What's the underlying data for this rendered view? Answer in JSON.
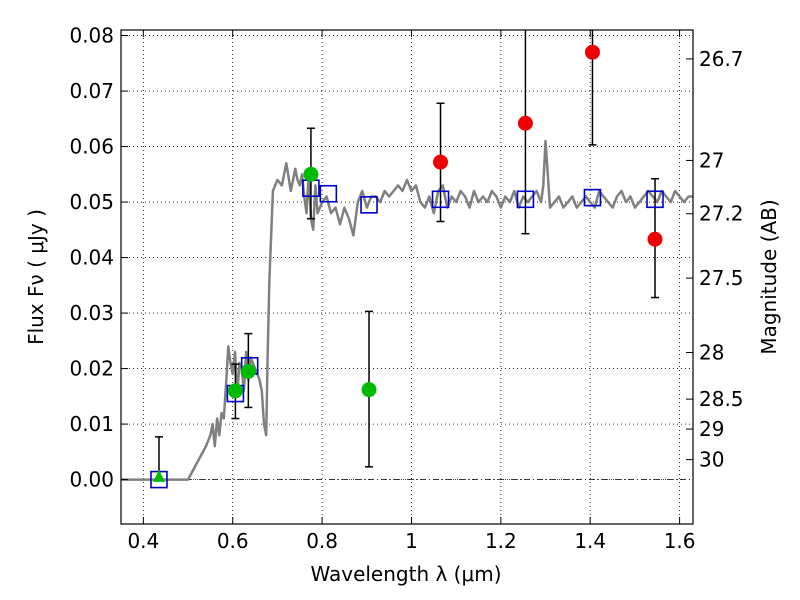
{
  "chart_data": {
    "type": "scatter",
    "xlabel": "Wavelength  λ (μm)",
    "ylabel": "Flux  Fν  ( μJy )",
    "y2label": "Magnitude (AB)",
    "xlim": [
      0.35,
      1.63
    ],
    "ylim": [
      -0.008,
      0.081
    ],
    "xticks": [
      0.4,
      0.6,
      0.8,
      1.0,
      1.2,
      1.4,
      1.6
    ],
    "xtick_labels": [
      "0.4",
      "0.6",
      "0.8",
      "1",
      "1.2",
      "1.4",
      "1.6"
    ],
    "yticks": [
      0.0,
      0.01,
      0.02,
      0.03,
      0.04,
      0.05,
      0.06,
      0.07,
      0.08
    ],
    "ytick_labels": [
      "0.00",
      "0.01",
      "0.02",
      "0.03",
      "0.04",
      "0.05",
      "0.06",
      "0.07",
      "0.08"
    ],
    "y2ticks": [
      {
        "label": "26.7",
        "flux": 0.0758
      },
      {
        "label": "27",
        "flux": 0.0575
      },
      {
        "label": "27.2",
        "flux": 0.0479
      },
      {
        "label": "27.5",
        "flux": 0.0363
      },
      {
        "label": "28",
        "flux": 0.0229
      },
      {
        "label": "28.5",
        "flux": 0.0145
      },
      {
        "label": "29",
        "flux": 0.0091
      },
      {
        "label": "30",
        "flux": 0.0036
      }
    ],
    "grid": true,
    "zero_line": 0.0,
    "series": [
      {
        "kind": "line",
        "color": "#808080",
        "x": [
          0.35,
          0.5,
          0.52,
          0.54,
          0.55,
          0.555,
          0.56,
          0.565,
          0.57,
          0.575,
          0.58,
          0.585,
          0.59,
          0.595,
          0.6,
          0.605,
          0.61,
          0.615,
          0.62,
          0.625,
          0.63,
          0.635,
          0.64,
          0.645,
          0.65,
          0.655,
          0.66,
          0.665,
          0.67,
          0.675,
          0.678,
          0.682,
          0.69,
          0.7,
          0.71,
          0.72,
          0.73,
          0.74,
          0.745,
          0.75,
          0.755,
          0.76,
          0.765,
          0.77,
          0.775,
          0.78,
          0.785,
          0.79,
          0.795,
          0.8,
          0.81,
          0.82,
          0.83,
          0.84,
          0.85,
          0.86,
          0.87,
          0.88,
          0.89,
          0.9,
          0.91,
          0.92,
          0.93,
          0.94,
          0.95,
          0.96,
          0.97,
          0.98,
          0.99,
          1.0,
          1.01,
          1.02,
          1.03,
          1.04,
          1.05,
          1.06,
          1.07,
          1.08,
          1.09,
          1.1,
          1.11,
          1.12,
          1.13,
          1.14,
          1.15,
          1.16,
          1.17,
          1.18,
          1.19,
          1.2,
          1.21,
          1.22,
          1.23,
          1.24,
          1.25,
          1.26,
          1.27,
          1.28,
          1.29,
          1.295,
          1.3,
          1.305,
          1.31,
          1.32,
          1.33,
          1.34,
          1.35,
          1.36,
          1.37,
          1.38,
          1.39,
          1.4,
          1.41,
          1.42,
          1.43,
          1.44,
          1.45,
          1.46,
          1.47,
          1.48,
          1.49,
          1.5,
          1.51,
          1.52,
          1.53,
          1.54,
          1.55,
          1.56,
          1.57,
          1.58,
          1.59,
          1.6,
          1.61,
          1.62,
          1.63
        ],
        "y": [
          0.0,
          0.0,
          0.003,
          0.006,
          0.008,
          0.01,
          0.006,
          0.011,
          0.008,
          0.012,
          0.011,
          0.017,
          0.024,
          0.021,
          0.019,
          0.023,
          0.015,
          0.021,
          0.02,
          0.016,
          0.023,
          0.018,
          0.022,
          0.021,
          0.02,
          0.019,
          0.018,
          0.016,
          0.01,
          0.008,
          0.022,
          0.036,
          0.052,
          0.054,
          0.053,
          0.057,
          0.052,
          0.056,
          0.054,
          0.053,
          0.055,
          0.051,
          0.048,
          0.055,
          0.047,
          0.045,
          0.053,
          0.048,
          0.049,
          0.05,
          0.051,
          0.048,
          0.049,
          0.046,
          0.049,
          0.047,
          0.044,
          0.05,
          0.052,
          0.049,
          0.051,
          0.051,
          0.05,
          0.052,
          0.051,
          0.052,
          0.053,
          0.052,
          0.054,
          0.052,
          0.053,
          0.05,
          0.049,
          0.051,
          0.048,
          0.052,
          0.053,
          0.049,
          0.051,
          0.05,
          0.052,
          0.051,
          0.049,
          0.052,
          0.05,
          0.051,
          0.05,
          0.052,
          0.051,
          0.049,
          0.051,
          0.05,
          0.052,
          0.049,
          0.051,
          0.05,
          0.051,
          0.052,
          0.05,
          0.053,
          0.061,
          0.055,
          0.049,
          0.05,
          0.051,
          0.049,
          0.05,
          0.051,
          0.049,
          0.05,
          0.051,
          0.05,
          0.049,
          0.052,
          0.051,
          0.05,
          0.049,
          0.051,
          0.052,
          0.05,
          0.051,
          0.049,
          0.05,
          0.051,
          0.052,
          0.051,
          0.05,
          0.052,
          0.051,
          0.05,
          0.052,
          0.051,
          0.05,
          0.051,
          0.051
        ]
      },
      {
        "kind": "points",
        "marker": "open-square",
        "color": "#0000cc",
        "x": [
          0.435,
          0.606,
          0.638,
          0.775,
          0.814,
          0.905,
          1.065,
          1.255,
          1.405,
          1.545
        ],
        "y": [
          0.0,
          0.0155,
          0.0205,
          0.0525,
          0.0515,
          0.0495,
          0.0505,
          0.0505,
          0.0508,
          0.0505
        ]
      },
      {
        "kind": "points",
        "marker": "filled-circle",
        "color": "#00bb00",
        "x": [
          0.606,
          0.635,
          0.775,
          0.905
        ],
        "y": [
          0.016,
          0.0195,
          0.055,
          0.0162
        ],
        "yerr": [
          [
            0.011,
            0.0208
          ],
          [
            0.013,
            0.0263
          ],
          [
            0.047,
            0.0633
          ],
          [
            0.0023,
            0.0303
          ]
        ]
      },
      {
        "kind": "points",
        "marker": "filled-triangle",
        "color": "#00bb00",
        "x": [
          0.435
        ],
        "y": [
          0.0005
        ],
        "yerr": [
          [
            0.0,
            0.0077
          ]
        ]
      },
      {
        "kind": "points",
        "marker": "filled-circle",
        "color": "#ee0000",
        "x": [
          1.065,
          1.255,
          1.405,
          1.545
        ],
        "y": [
          0.0572,
          0.0642,
          0.077,
          0.0433
        ],
        "yerr": [
          [
            0.0465,
            0.0678
          ],
          [
            0.0443,
            0.0845
          ],
          [
            0.0603,
            0.0845
          ],
          [
            0.0328,
            0.0542
          ]
        ]
      }
    ]
  }
}
